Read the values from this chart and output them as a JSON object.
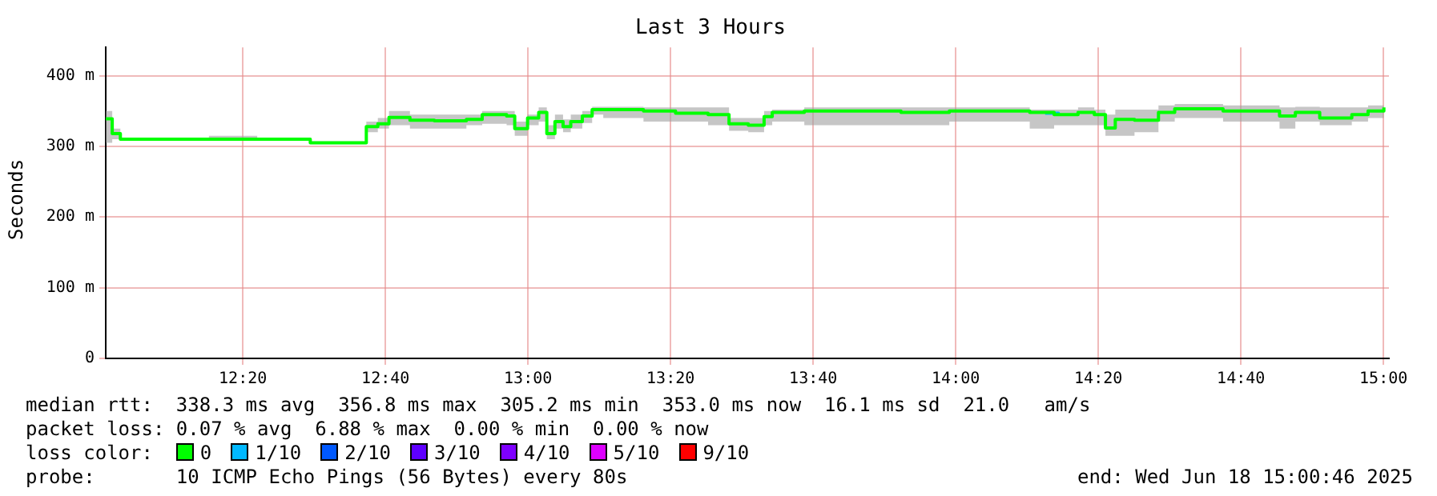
{
  "chart_data": {
    "type": "step",
    "title": "Last 3 Hours",
    "ylabel": "Seconds",
    "legend_title": "loss color:",
    "legend": "bottom",
    "grid": true,
    "marker": "none",
    "line_style": "solid",
    "xlim": [
      12.0128,
      15.0128
    ],
    "xticks": [
      {
        "value": 12.3333,
        "label": "12:20"
      },
      {
        "value": 12.6667,
        "label": "12:40"
      },
      {
        "value": 13,
        "label": "13:00"
      },
      {
        "value": 13.3333,
        "label": "13:20"
      },
      {
        "value": 13.6667,
        "label": "13:40"
      },
      {
        "value": 14,
        "label": "14:00"
      },
      {
        "value": 14.3333,
        "label": "14:20"
      },
      {
        "value": 14.6667,
        "label": "14:40"
      },
      {
        "value": 15,
        "label": "15:00"
      }
    ],
    "ylim": [
      0,
      440
    ],
    "yticks": [
      0,
      {
        "value": 100,
        "label": "100 m"
      },
      {
        "value": 200,
        "label": "200 m"
      },
      {
        "value": 300,
        "label": "300 m"
      },
      {
        "value": 400,
        "label": "400 m"
      }
    ],
    "x": [
      12.013,
      12.028,
      12.047,
      12.141,
      12.254,
      12.367,
      12.491,
      12.555,
      12.622,
      12.649,
      12.675,
      12.724,
      12.781,
      12.856,
      12.893,
      12.95,
      12.969,
      12.999,
      13.025,
      13.044,
      13.063,
      13.082,
      13.1,
      13.127,
      13.15,
      13.176,
      13.27,
      13.345,
      13.421,
      13.47,
      13.515,
      13.552,
      13.571,
      13.646,
      13.759,
      13.872,
      13.985,
      14.173,
      14.23,
      14.286,
      14.324,
      14.35,
      14.373,
      14.418,
      14.474,
      14.512,
      14.625,
      14.757,
      14.794,
      14.851,
      14.926,
      14.964,
      15.001
    ],
    "series": [
      {
        "name": "0",
        "color": "#00ff00",
        "values": [
          339,
          318,
          310,
          310,
          310,
          310,
          305,
          305,
          328,
          332,
          341,
          337,
          336,
          338,
          345,
          343,
          325,
          340,
          348,
          318,
          335,
          328,
          335,
          343,
          352,
          352,
          350,
          347,
          345,
          332,
          330,
          342,
          348,
          350,
          350,
          348,
          350,
          348,
          345,
          348,
          345,
          326,
          338,
          337,
          348,
          353,
          350,
          343,
          348,
          340,
          345,
          350,
          355
        ],
        "lower": [
          305,
          310,
          308,
          308,
          308,
          308,
          303,
          303,
          320,
          325,
          330,
          325,
          325,
          330,
          332,
          330,
          315,
          330,
          335,
          310,
          325,
          320,
          325,
          333,
          345,
          340,
          335,
          335,
          330,
          322,
          320,
          330,
          335,
          330,
          330,
          330,
          335,
          325,
          330,
          330,
          330,
          315,
          315,
          320,
          335,
          340,
          335,
          325,
          335,
          330,
          335,
          340,
          345
        ],
        "upper": [
          350,
          325,
          312,
          312,
          315,
          312,
          307,
          307,
          335,
          340,
          350,
          345,
          345,
          345,
          350,
          350,
          335,
          345,
          355,
          330,
          345,
          338,
          345,
          350,
          356,
          356,
          355,
          355,
          355,
          340,
          340,
          350,
          352,
          355,
          355,
          355,
          355,
          352,
          352,
          355,
          352,
          345,
          352,
          352,
          358,
          360,
          358,
          355,
          356,
          355,
          355,
          358,
          360
        ]
      },
      {
        "name": "1/10",
        "color": "#00b8ff",
        "x": [
          14.209,
          14.24
        ],
        "values": [
          347,
          345
        ]
      },
      {
        "name": "2/10",
        "color": "#0059ff",
        "values": [
          null,
          null,
          null,
          null,
          null,
          null,
          null,
          null,
          null,
          null,
          null,
          null,
          null,
          null,
          null,
          null,
          null,
          null,
          null,
          null,
          null,
          null,
          null,
          null,
          null,
          null,
          null,
          null,
          null,
          null,
          null,
          null,
          null,
          null,
          null,
          null,
          null,
          null,
          null,
          null,
          null,
          null,
          null,
          null,
          null,
          null,
          null,
          null,
          null,
          null,
          null,
          null,
          null
        ]
      },
      {
        "name": "3/10",
        "color": "#5e00ff",
        "values": [
          null,
          null,
          null,
          null,
          null,
          null,
          null,
          null,
          null,
          null,
          null,
          null,
          null,
          null,
          null,
          null,
          null,
          null,
          null,
          null,
          null,
          null,
          null,
          null,
          null,
          null,
          null,
          null,
          null,
          null,
          null,
          null,
          null,
          null,
          null,
          null,
          null,
          null,
          null,
          null,
          null,
          null,
          null,
          null,
          null,
          null,
          null,
          null,
          null,
          null,
          null,
          null,
          null
        ]
      },
      {
        "name": "4/10",
        "color": "#7e00ff",
        "values": [
          null,
          null,
          null,
          null,
          null,
          null,
          null,
          null,
          null,
          null,
          null,
          null,
          null,
          null,
          null,
          null,
          null,
          null,
          null,
          null,
          null,
          null,
          null,
          null,
          null,
          null,
          null,
          null,
          null,
          null,
          null,
          null,
          null,
          null,
          null,
          null,
          null,
          null,
          null,
          null,
          null,
          null,
          null,
          null,
          null,
          null,
          null,
          null,
          null,
          null,
          null,
          null,
          null
        ]
      },
      {
        "name": "5/10",
        "color": "#dd00ff",
        "values": [
          null,
          null,
          null,
          null,
          null,
          null,
          null,
          null,
          null,
          null,
          null,
          null,
          null,
          null,
          null,
          null,
          null,
          null,
          null,
          null,
          null,
          null,
          null,
          null,
          null,
          null,
          null,
          null,
          null,
          null,
          null,
          null,
          null,
          null,
          null,
          null,
          null,
          null,
          null,
          null,
          null,
          null,
          null,
          null,
          null,
          null,
          null,
          null,
          null,
          null,
          null,
          null,
          null
        ]
      },
      {
        "name": "9/10",
        "color": "#ff0000",
        "values": [
          null,
          null,
          null,
          null,
          null,
          null,
          null,
          null,
          null,
          null,
          null,
          null,
          null,
          null,
          null,
          null,
          null,
          null,
          null,
          null,
          null,
          null,
          null,
          null,
          null,
          null,
          null,
          null,
          null,
          null,
          null,
          null,
          null,
          null,
          null,
          null,
          null,
          null,
          null,
          null,
          null,
          null,
          null,
          null,
          null,
          null,
          null,
          null,
          null,
          null,
          null,
          null,
          null
        ]
      }
    ],
    "annotations": [
      "median rtt:  338.3 ms avg  356.8 ms max  305.2 ms min  353.0 ms now  16.1 ms sd  21.0   am/s",
      "packet loss: 0.07 % avg  6.88 % max  0.00 % min  0.00 % now",
      "probe:       10 ICMP Echo Pings (56 Bytes) every 80s",
      "end: Wed Jun 18 15:00:46 2025"
    ]
  }
}
